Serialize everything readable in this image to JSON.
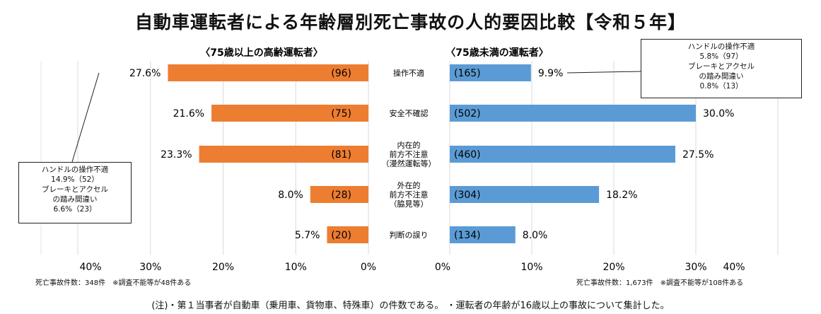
{
  "title": "自動車運転者による年齢層別死亡事故の人的要因比較【令和５年】",
  "chart_data": [
    {
      "type": "bar",
      "orientation": "horizontal",
      "title": "〈75歳以上の高齢運転者〉",
      "categories": [
        "操作不適",
        "安全不確認",
        "内在的前方不注意（漫然運転等）",
        "外在的前方不注意（脇見等）",
        "判断の誤り"
      ],
      "values": [
        27.6,
        21.6,
        23.3,
        8.0,
        5.7
      ],
      "value_labels": [
        "27.6%",
        "21.6%",
        "23.3%",
        "8.0%",
        "5.7%"
      ],
      "counts": [
        "(96)",
        "(75)",
        "(81)",
        "(28)",
        "(20)"
      ],
      "xlim": [
        0,
        40
      ],
      "x_ticks": [
        "40%",
        "30%",
        "20%",
        "10%",
        "0%"
      ],
      "direction": "right-to-left",
      "color": "#ED7D31",
      "grid": true,
      "footnote": "死亡事故件数：348件　※調査不能等が48件ある"
    },
    {
      "type": "bar",
      "orientation": "horizontal",
      "title": "〈75歳未満の運転者〉",
      "categories": [
        "操作不適",
        "安全不確認",
        "内在的前方不注意（漫然運転等）",
        "外在的前方不注意（脇見等）",
        "判断の誤り"
      ],
      "values": [
        9.9,
        30.0,
        27.5,
        18.2,
        8.0
      ],
      "value_labels": [
        "9.9%",
        "30.0%",
        "27.5%",
        "18.2%",
        "8.0%"
      ],
      "counts": [
        "(165)",
        "(502)",
        "(460)",
        "(304)",
        "(134)"
      ],
      "xlim": [
        0,
        40
      ],
      "x_ticks": [
        "0%",
        "10%",
        "20%",
        "30%",
        "40%"
      ],
      "direction": "left-to-right",
      "color": "#5B9BD5",
      "grid": true,
      "footnote": "死亡事故件数：1,673件　※調査不能等が108件ある"
    }
  ],
  "category_label_lines": [
    [
      "操作不適"
    ],
    [
      "安全不確認"
    ],
    [
      "内在的",
      "前方不注意",
      "（漫然運転等）"
    ],
    [
      "外在的",
      "前方不注意",
      "（脇見等）"
    ],
    [
      "判断の誤り"
    ]
  ],
  "callout_left": {
    "line1": "ハンドルの操作不適",
    "line2": "14.9%（52）",
    "line3": "ブレーキとアクセル",
    "line4": "の踏み間違い",
    "line5": "6.6%（23）"
  },
  "callout_right": {
    "line1": "ハンドルの操作不適",
    "line2": "5.8%（97）",
    "line3": "ブレーキとアクセル",
    "line4": "の踏み間違い",
    "line5": "0.8%（13）"
  },
  "note": "(注)・第１当事者が自動車（乗用車、貨物車、特殊車）の件数である。 ・運転者の年齢が16歳以上の事故について集計した。"
}
